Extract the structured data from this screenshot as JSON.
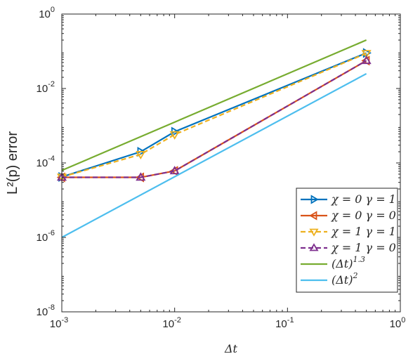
{
  "chart_data": {
    "type": "line",
    "xscale": "log",
    "yscale": "log",
    "xlim": [
      0.001,
      1
    ],
    "ylim": [
      1e-08,
      1
    ],
    "xlabel": "Δt",
    "ylabel": "L²(p) error",
    "x_ticks": [
      {
        "value": 0.001,
        "base": "10",
        "exp": "-3"
      },
      {
        "value": 0.01,
        "base": "10",
        "exp": "-2"
      },
      {
        "value": 0.1,
        "base": "10",
        "exp": "-1"
      },
      {
        "value": 1,
        "base": "10",
        "exp": "0"
      }
    ],
    "y_ticks": [
      {
        "value": 1e-08,
        "base": "10",
        "exp": "-8"
      },
      {
        "value": 1e-06,
        "base": "10",
        "exp": "-6"
      },
      {
        "value": 0.0001,
        "base": "10",
        "exp": "-4"
      },
      {
        "value": 0.01,
        "base": "10",
        "exp": "-2"
      },
      {
        "value": 1,
        "base": "10",
        "exp": "0"
      }
    ],
    "grid": false,
    "legend_position": "bottom-right",
    "series": [
      {
        "name": "χ = 0 γ = 1",
        "color": "#0072BD",
        "dash": "solid",
        "marker": "triangle-right",
        "x": [
          0.001,
          0.005,
          0.01,
          0.5
        ],
        "y": [
          4.2e-05,
          0.0002,
          0.00069,
          0.09
        ]
      },
      {
        "name": "χ = 0 γ = 0",
        "color": "#D95319",
        "dash": "solid",
        "marker": "triangle-left",
        "x": [
          0.001,
          0.005,
          0.01,
          0.5
        ],
        "y": [
          4.1e-05,
          4.1e-05,
          6.1e-05,
          0.056
        ]
      },
      {
        "name": "χ = 1 γ = 1",
        "color": "#EDB120",
        "dash": "dashed",
        "marker": "triangle-down",
        "x": [
          0.001,
          0.005,
          0.01,
          0.5
        ],
        "y": [
          4.2e-05,
          0.00017,
          0.00058,
          0.088
        ]
      },
      {
        "name": "χ = 1 γ = 0",
        "color": "#7E2F8E",
        "dash": "dashed",
        "marker": "triangle-up",
        "x": [
          0.001,
          0.005,
          0.01,
          0.5
        ],
        "y": [
          4.1e-05,
          4.1e-05,
          6.1e-05,
          0.056
        ]
      },
      {
        "name": "(Δt)^1.3",
        "legend_base": "(Δt)",
        "legend_exp": "1.3",
        "color": "#77AC30",
        "dash": "solid",
        "marker": "none",
        "x": [
          0.001,
          0.5
        ],
        "y": [
          6.3e-05,
          0.2
        ]
      },
      {
        "name": "(Δt)^2",
        "legend_base": "(Δt)",
        "legend_exp": "2",
        "color": "#4DBEEE",
        "dash": "solid",
        "marker": "none",
        "x": [
          0.001,
          0.5
        ],
        "y": [
          1e-06,
          0.025
        ]
      }
    ]
  }
}
